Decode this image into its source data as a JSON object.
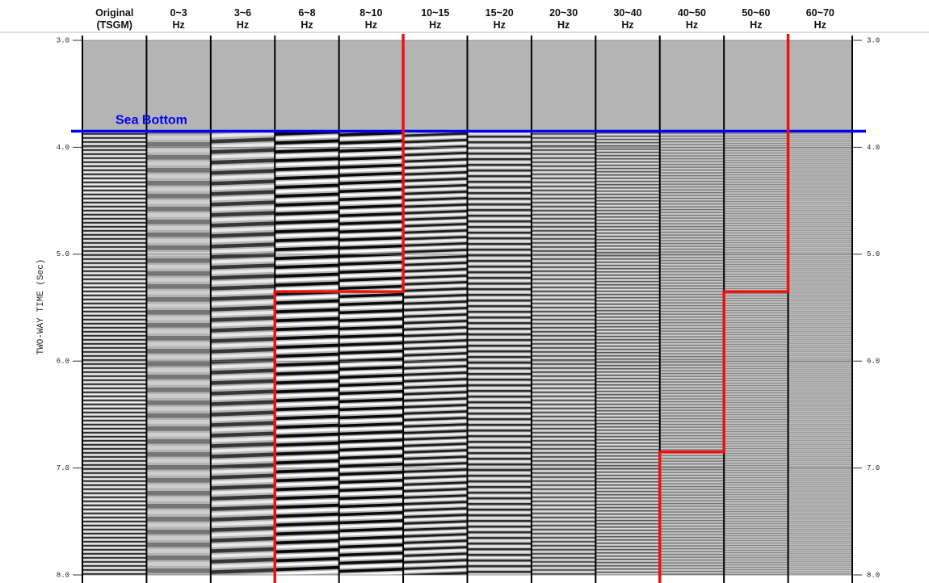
{
  "chart_data": {
    "type": "panels",
    "y_label": "TWO-WAY TIME (Sec)",
    "ylim": [
      3.0,
      8.0
    ],
    "yticks": [
      {
        "value": 3,
        "label": "3.0"
      },
      {
        "value": 4,
        "label": "4.0"
      },
      {
        "value": 5,
        "label": "5.0"
      },
      {
        "value": 6,
        "label": "6.0"
      },
      {
        "value": 7,
        "label": "7.0"
      },
      {
        "value": 8,
        "label": "8.0"
      }
    ],
    "grid": true,
    "columns": [
      [
        "Original",
        "(TSGM)"
      ],
      [
        "0~3",
        "Hz"
      ],
      [
        "3~6",
        "Hz"
      ],
      [
        "6~8",
        "Hz"
      ],
      [
        "8~10",
        "Hz"
      ],
      [
        "10~15",
        "Hz"
      ],
      [
        "15~20",
        "Hz"
      ],
      [
        "20~30",
        "Hz"
      ],
      [
        "30~40",
        "Hz"
      ],
      [
        "40~50",
        "Hz"
      ],
      [
        "50~60",
        "Hz"
      ],
      [
        "60~70",
        "Hz"
      ]
    ],
    "sea_bottom": {
      "text": "Sea Bottom",
      "time": 3.85,
      "color": "#0000ee"
    },
    "boundaries": {
      "color": "#ee1111",
      "lines": [
        [
          5.35
        ],
        [
          5.35,
          6.85
        ]
      ]
    }
  }
}
